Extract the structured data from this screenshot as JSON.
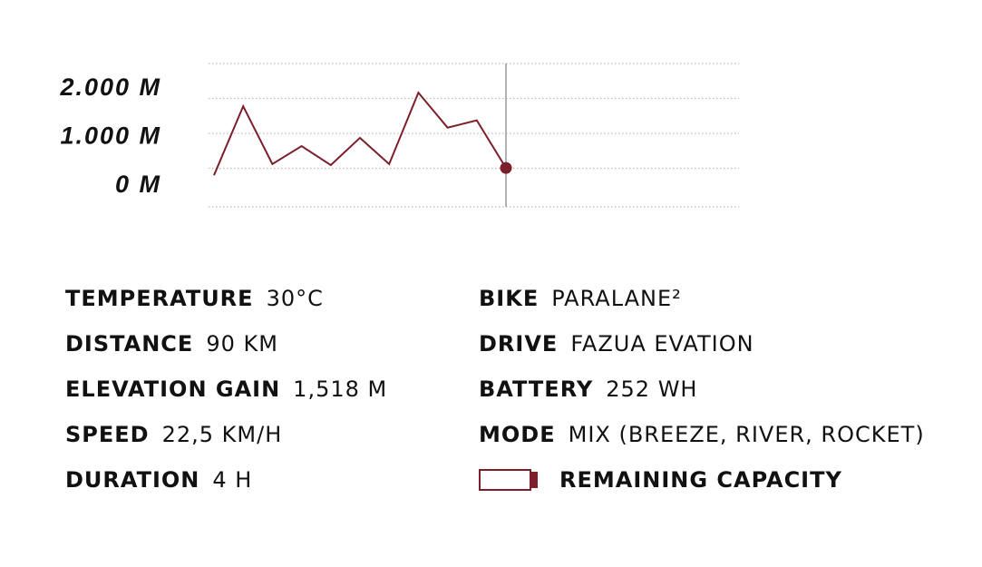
{
  "chart_data": {
    "type": "line",
    "color": "#7d1f2b",
    "values": [
      220,
      1640,
      450,
      820,
      430,
      990,
      450,
      1920,
      1200,
      1350,
      370
    ],
    "ylim": [
      -430,
      2520
    ],
    "yticks": [
      {
        "value": 2000,
        "label": "2.000 M"
      },
      {
        "value": 1000,
        "label": "1.000 M"
      },
      {
        "value": 0,
        "label": "0 M"
      }
    ]
  },
  "stats": {
    "left": [
      {
        "label": "TEMPERATURE",
        "value": "30°C"
      },
      {
        "label": "DISTANCE",
        "value": "90 KM"
      },
      {
        "label": "ELEVATION GAIN",
        "value": "1,518 M"
      },
      {
        "label": "SPEED",
        "value": "22,5 KM/H"
      },
      {
        "label": "DURATION",
        "value": "4 H"
      }
    ],
    "right": [
      {
        "label": "BIKE",
        "value": "PARALANE²"
      },
      {
        "label": "DRIVE",
        "value": "FAZUA EVATION"
      },
      {
        "label": "BATTERY",
        "value": "252 WH"
      },
      {
        "label": "MODE",
        "value": "MIX (BREEZE, RIVER, ROCKET)"
      }
    ],
    "battery_label": "REMAINING CAPACITY"
  }
}
